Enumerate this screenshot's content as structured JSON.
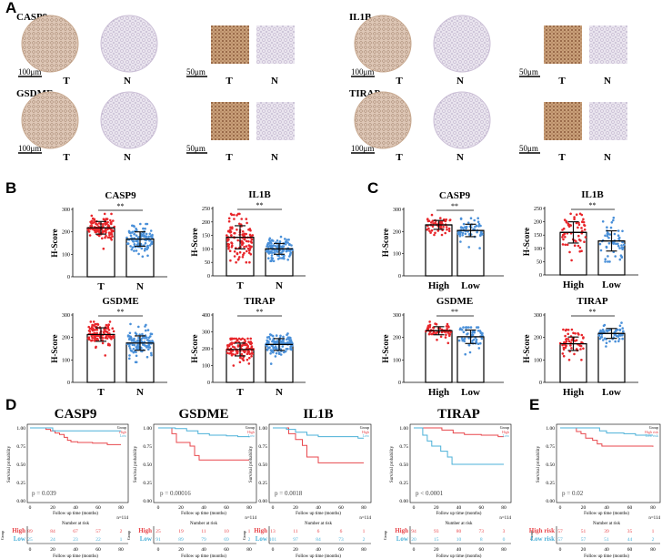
{
  "panels": {
    "A": "A",
    "B": "B",
    "C": "C",
    "D": "D",
    "E": "E"
  },
  "ihc": {
    "genes": [
      {
        "name": "CASP9",
        "scale_circle": "100μm",
        "scale_square": "50μm",
        "t": "T",
        "n": "N"
      },
      {
        "name": "IL1B",
        "scale_circle": "100μm",
        "scale_square": "50μm",
        "t": "T",
        "n": "N"
      },
      {
        "name": "GSDME",
        "scale_circle": "100μm",
        "scale_square": "50μm",
        "t": "T",
        "n": "N"
      },
      {
        "name": "TIRAP",
        "scale_circle": "100μm",
        "scale_square": "50μm",
        "t": "T",
        "n": "N"
      }
    ]
  },
  "colors": {
    "red": "#e8262b",
    "blue": "#4a90d9",
    "km_red": "#e8474c",
    "km_blue": "#4bb0d8"
  },
  "chart_data": [
    {
      "panel": "B",
      "type": "bar",
      "title": "CASP9",
      "ylabel": "H-Score",
      "categories": [
        "T",
        "N"
      ],
      "sig": "**",
      "ylim": [
        0,
        300
      ],
      "yticks": [
        0,
        100,
        200,
        300
      ],
      "series": [
        {
          "name": "T",
          "mean": 218,
          "sd": 28,
          "min": 125,
          "max": 280,
          "n": 114
        },
        {
          "name": "N",
          "mean": 168,
          "sd": 32,
          "min": 90,
          "max": 235,
          "n": 114
        }
      ]
    },
    {
      "panel": "B",
      "type": "bar",
      "title": "IL1B",
      "ylabel": "H-Score",
      "categories": [
        "T",
        "N"
      ],
      "sig": "**",
      "ylim": [
        0,
        250
      ],
      "yticks": [
        0,
        50,
        100,
        150,
        200,
        250
      ],
      "series": [
        {
          "name": "T",
          "mean": 143,
          "sd": 43,
          "min": 50,
          "max": 230,
          "n": 114
        },
        {
          "name": "N",
          "mean": 100,
          "sd": 20,
          "min": 55,
          "max": 145,
          "n": 114
        }
      ]
    },
    {
      "panel": "B",
      "type": "bar",
      "title": "GSDME",
      "ylabel": "H-Score",
      "categories": [
        "T",
        "N"
      ],
      "sig": "**",
      "ylim": [
        0,
        300
      ],
      "yticks": [
        0,
        100,
        200,
        300
      ],
      "series": [
        {
          "name": "T",
          "mean": 213,
          "sd": 30,
          "min": 120,
          "max": 270,
          "n": 114
        },
        {
          "name": "N",
          "mean": 175,
          "sd": 32,
          "min": 90,
          "max": 260,
          "n": 114
        }
      ]
    },
    {
      "panel": "B",
      "type": "bar",
      "title": "TIRAP",
      "ylabel": "H-Score",
      "categories": [
        "T",
        "N"
      ],
      "sig": "**",
      "ylim": [
        0,
        400
      ],
      "yticks": [
        0,
        100,
        200,
        300,
        400
      ],
      "series": [
        {
          "name": "T",
          "mean": 195,
          "sd": 38,
          "min": 100,
          "max": 260,
          "n": 114
        },
        {
          "name": "N",
          "mean": 225,
          "sd": 35,
          "min": 110,
          "max": 290,
          "n": 114
        }
      ]
    },
    {
      "panel": "C",
      "type": "bar",
      "title": "CASP9",
      "ylabel": "H-Score",
      "categories": [
        "High",
        "Low"
      ],
      "sig": "**",
      "ylim": [
        0,
        300
      ],
      "yticks": [
        0,
        100,
        200,
        300
      ],
      "series": [
        {
          "name": "High",
          "mean": 230,
          "sd": 20,
          "min": 185,
          "max": 275,
          "n": 57
        },
        {
          "name": "Low",
          "mean": 205,
          "sd": 28,
          "min": 125,
          "max": 260,
          "n": 57
        }
      ]
    },
    {
      "panel": "C",
      "type": "bar",
      "title": "IL1B",
      "ylabel": "H-Score",
      "categories": [
        "High",
        "Low"
      ],
      "sig": "**",
      "ylim": [
        0,
        250
      ],
      "yticks": [
        0,
        50,
        100,
        150,
        200,
        250
      ],
      "series": [
        {
          "name": "High",
          "mean": 160,
          "sd": 40,
          "min": 55,
          "max": 230,
          "n": 57
        },
        {
          "name": "Low",
          "mean": 128,
          "sd": 38,
          "min": 50,
          "max": 215,
          "n": 57
        }
      ]
    },
    {
      "panel": "C",
      "type": "bar",
      "title": "GSDME",
      "ylabel": "H-Score",
      "categories": [
        "High",
        "Low"
      ],
      "sig": "**",
      "ylim": [
        0,
        300
      ],
      "yticks": [
        0,
        100,
        200,
        300
      ],
      "series": [
        {
          "name": "High",
          "mean": 230,
          "sd": 18,
          "min": 175,
          "max": 270,
          "n": 57
        },
        {
          "name": "Low",
          "mean": 203,
          "sd": 30,
          "min": 125,
          "max": 245,
          "n": 57
        }
      ]
    },
    {
      "panel": "C",
      "type": "bar",
      "title": "TIRAP",
      "ylabel": "H-Score",
      "categories": [
        "High",
        "Low"
      ],
      "sig": "**",
      "ylim": [
        0,
        300
      ],
      "yticks": [
        0,
        100,
        200,
        300
      ],
      "series": [
        {
          "name": "High",
          "mean": 172,
          "sd": 30,
          "min": 100,
          "max": 235,
          "n": 57
        },
        {
          "name": "Low",
          "mean": 218,
          "sd": 22,
          "min": 160,
          "max": 265,
          "n": 57
        }
      ]
    },
    {
      "panel": "D",
      "type": "line",
      "title": "CASP9",
      "p": "p = 0.039",
      "xlabel": "Follow up time (months)",
      "ylabel": "Survival probability",
      "xticks": [
        0,
        20,
        40,
        60,
        80
      ],
      "yticks": [
        "0.00",
        "0.25",
        "0.50",
        "0.75",
        "1.00"
      ],
      "n_label": "n=114",
      "risk_title": "Number at risk",
      "risk_ylabel": "Group",
      "legend_title": "Group",
      "series": [
        {
          "name": "High",
          "risk": [
            89,
            84,
            67,
            57,
            2
          ],
          "steps": [
            [
              0,
              1
            ],
            [
              12,
              1
            ],
            [
              14,
              0.98
            ],
            [
              18,
              0.96
            ],
            [
              22,
              0.93
            ],
            [
              26,
              0.91
            ],
            [
              30,
              0.87
            ],
            [
              33,
              0.83
            ],
            [
              36,
              0.81
            ],
            [
              42,
              0.8
            ],
            [
              55,
              0.79
            ],
            [
              68,
              0.77
            ],
            [
              80,
              0.77
            ]
          ]
        },
        {
          "name": "Low",
          "risk": [
            25,
            24,
            23,
            22,
            1
          ],
          "steps": [
            [
              0,
              1
            ],
            [
              20,
              1
            ],
            [
              20,
              0.96
            ],
            [
              80,
              0.96
            ]
          ]
        }
      ]
    },
    {
      "panel": "D",
      "type": "line",
      "title": "GSDME",
      "p": "p = 0.00016",
      "xlabel": "Follow up time (months)",
      "ylabel": "Survival probability",
      "xticks": [
        0,
        20,
        40,
        60,
        80
      ],
      "yticks": [
        "0.00",
        "0.25",
        "0.50",
        "0.75",
        "1.00"
      ],
      "n_label": "n=114",
      "risk_title": "Number at risk",
      "risk_ylabel": "Group",
      "legend_title": "Group",
      "series": [
        {
          "name": "High",
          "risk": [
            25,
            19,
            11,
            10,
            1
          ],
          "steps": [
            [
              0,
              1
            ],
            [
              10,
              1
            ],
            [
              12,
              0.92
            ],
            [
              16,
              0.8
            ],
            [
              28,
              0.75
            ],
            [
              32,
              0.62
            ],
            [
              36,
              0.56
            ],
            [
              80,
              0.56
            ]
          ]
        },
        {
          "name": "Low",
          "risk": [
            91,
            89,
            79,
            69,
            2
          ],
          "steps": [
            [
              0,
              1
            ],
            [
              15,
              0.99
            ],
            [
              25,
              0.96
            ],
            [
              35,
              0.92
            ],
            [
              45,
              0.9
            ],
            [
              60,
              0.89
            ],
            [
              70,
              0.88
            ],
            [
              80,
              0.87
            ]
          ]
        }
      ]
    },
    {
      "panel": "D",
      "type": "line",
      "title": "IL1B",
      "p": "p = 0.0018",
      "xlabel": "Follow up time (months)",
      "ylabel": "Survival probability",
      "xticks": [
        0,
        20,
        40,
        60,
        80
      ],
      "yticks": [
        "0.00",
        "0.25",
        "0.50",
        "0.75",
        "1.00"
      ],
      "n_label": "n=114",
      "risk_title": "Number at risk",
      "risk_ylabel": "Group",
      "legend_title": "Group",
      "series": [
        {
          "name": "High",
          "risk": [
            13,
            11,
            6,
            6,
            1
          ],
          "steps": [
            [
              0,
              1
            ],
            [
              12,
              1
            ],
            [
              14,
              0.92
            ],
            [
              20,
              0.84
            ],
            [
              26,
              0.76
            ],
            [
              30,
              0.6
            ],
            [
              40,
              0.52
            ],
            [
              80,
              0.52
            ]
          ]
        },
        {
          "name": "Low",
          "risk": [
            101,
            97,
            84,
            73,
            2
          ],
          "steps": [
            [
              0,
              1
            ],
            [
              12,
              0.98
            ],
            [
              20,
              0.94
            ],
            [
              30,
              0.9
            ],
            [
              40,
              0.88
            ],
            [
              60,
              0.88
            ],
            [
              75,
              0.86
            ],
            [
              80,
              0.86
            ]
          ]
        }
      ]
    },
    {
      "panel": "D",
      "type": "line",
      "title": "TIRAP",
      "p": "p < 0.0001",
      "xlabel": "Follow up time (months)",
      "ylabel": "Survival probability",
      "xticks": [
        0,
        20,
        40,
        60,
        80
      ],
      "yticks": [
        "0.00",
        "0.25",
        "0.50",
        "0.75",
        "1.00"
      ],
      "n_label": "n=114",
      "risk_title": "Number at risk",
      "risk_ylabel": "Group",
      "legend_title": "Group",
      "series": [
        {
          "name": "High",
          "risk": [
            94,
            93,
            80,
            73,
            3
          ],
          "steps": [
            [
              0,
              1
            ],
            [
              20,
              1
            ],
            [
              25,
              0.97
            ],
            [
              35,
              0.93
            ],
            [
              45,
              0.91
            ],
            [
              60,
              0.9
            ],
            [
              75,
              0.88
            ],
            [
              80,
              0.88
            ]
          ]
        },
        {
          "name": "Low",
          "risk": [
            20,
            15,
            10,
            8,
            0
          ],
          "steps": [
            [
              0,
              1
            ],
            [
              6,
              1
            ],
            [
              8,
              0.9
            ],
            [
              12,
              0.82
            ],
            [
              16,
              0.75
            ],
            [
              24,
              0.68
            ],
            [
              30,
              0.6
            ],
            [
              34,
              0.5
            ],
            [
              80,
              0.5
            ]
          ]
        }
      ]
    },
    {
      "panel": "E",
      "type": "line",
      "title": "",
      "p": "p = 0.02",
      "xlabel": "Follow up time (months)",
      "ylabel": "Survival probability",
      "xticks": [
        0,
        20,
        40,
        60,
        80
      ],
      "yticks": [
        "0.00",
        "0.25",
        "0.50",
        "0.75",
        "1.00"
      ],
      "n_label": "n=114",
      "risk_title": "Number at risk",
      "risk_ylabel": "Group",
      "legend_title": "Group",
      "series": [
        {
          "name": "High risk",
          "risk": [
            57,
            51,
            39,
            35,
            1
          ],
          "steps": [
            [
              0,
              1
            ],
            [
              10,
              1
            ],
            [
              14,
              0.95
            ],
            [
              18,
              0.92
            ],
            [
              22,
              0.86
            ],
            [
              28,
              0.83
            ],
            [
              32,
              0.78
            ],
            [
              36,
              0.75
            ],
            [
              80,
              0.74
            ]
          ]
        },
        {
          "name": "Low risk",
          "risk": [
            57,
            57,
            51,
            44,
            2
          ],
          "steps": [
            [
              0,
              1
            ],
            [
              30,
              1
            ],
            [
              34,
              0.96
            ],
            [
              40,
              0.93
            ],
            [
              55,
              0.92
            ],
            [
              65,
              0.9
            ],
            [
              80,
              0.9
            ]
          ]
        }
      ]
    }
  ]
}
